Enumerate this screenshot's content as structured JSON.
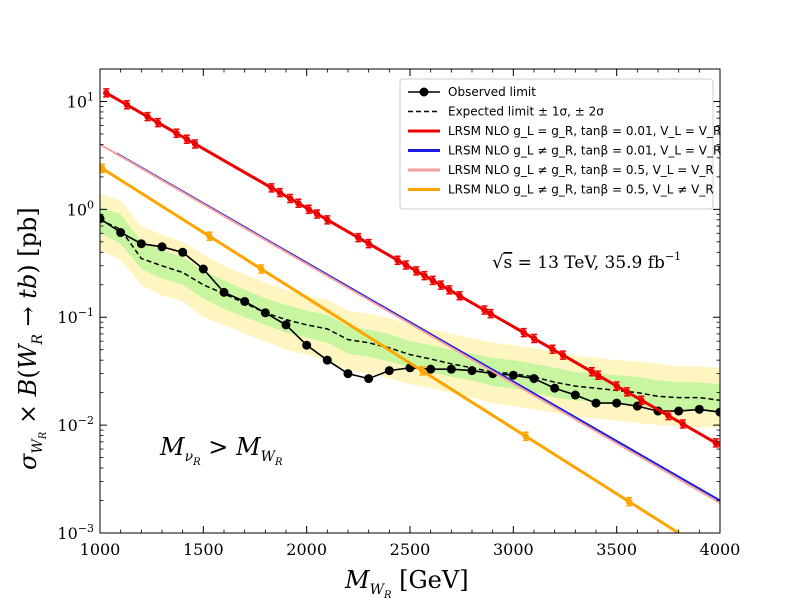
{
  "chart_data": {
    "type": "line",
    "xlabel": "M_{W_R} [GeV]",
    "ylabel": "σ_{W_R} × B(W_R → tb) [pb]",
    "xlim": [
      1000,
      4000
    ],
    "ylim": [
      0.001,
      20
    ],
    "yscale": "log",
    "x_ticks": [
      "1000",
      "1500",
      "2000",
      "2500",
      "3000",
      "3500",
      "4000"
    ],
    "y_ticks": [
      "10^{-3}",
      "10^{-2}",
      "10^{-1}",
      "10^{0}",
      "10^{1}"
    ],
    "legend_position": "top-right",
    "annotations": {
      "energy_lumi": "√s = 13 TeV, 35.9 fb⁻¹",
      "mass_condition": "M_{ν_R} > M_{W_R}"
    },
    "bands": {
      "x": [
        1000,
        1100,
        1200,
        1300,
        1400,
        1500,
        1600,
        1700,
        1800,
        1900,
        2000,
        2100,
        2200,
        2300,
        2400,
        2500,
        2600,
        2700,
        2800,
        2900,
        3000,
        3100,
        3200,
        3300,
        3400,
        3500,
        3600,
        3700,
        3800,
        3900,
        4000
      ],
      "two_sigma_lo": [
        0.42,
        0.34,
        0.2,
        0.16,
        0.14,
        0.1,
        0.085,
        0.07,
        0.06,
        0.05,
        0.045,
        0.04,
        0.032,
        0.03,
        0.027,
        0.024,
        0.022,
        0.02,
        0.018,
        0.016,
        0.015,
        0.014,
        0.013,
        0.012,
        0.0115,
        0.011,
        0.0105,
        0.01,
        0.0098,
        0.0095,
        0.0095
      ],
      "one_sigma_lo": [
        0.6,
        0.48,
        0.28,
        0.23,
        0.2,
        0.15,
        0.12,
        0.1,
        0.085,
        0.072,
        0.065,
        0.058,
        0.046,
        0.043,
        0.039,
        0.034,
        0.031,
        0.028,
        0.026,
        0.023,
        0.022,
        0.02,
        0.018,
        0.017,
        0.0165,
        0.016,
        0.0155,
        0.014,
        0.0135,
        0.0135,
        0.013
      ],
      "one_sigma_hi": [
        1.05,
        0.9,
        0.5,
        0.42,
        0.36,
        0.27,
        0.22,
        0.18,
        0.15,
        0.13,
        0.115,
        0.105,
        0.082,
        0.077,
        0.07,
        0.06,
        0.055,
        0.05,
        0.046,
        0.042,
        0.04,
        0.037,
        0.034,
        0.031,
        0.03,
        0.029,
        0.028,
        0.026,
        0.025,
        0.025,
        0.024
      ],
      "two_sigma_hi": [
        1.4,
        1.2,
        0.7,
        0.58,
        0.5,
        0.38,
        0.3,
        0.25,
        0.21,
        0.18,
        0.16,
        0.145,
        0.115,
        0.108,
        0.098,
        0.085,
        0.077,
        0.07,
        0.064,
        0.058,
        0.055,
        0.052,
        0.048,
        0.044,
        0.042,
        0.04,
        0.039,
        0.037,
        0.035,
        0.035,
        0.034
      ]
    },
    "series": [
      {
        "name": "Observed limit",
        "style": "observed",
        "color": "#000000",
        "x": [
          1000,
          1100,
          1200,
          1300,
          1400,
          1500,
          1600,
          1700,
          1800,
          1900,
          2000,
          2100,
          2200,
          2300,
          2400,
          2500,
          2600,
          2700,
          2800,
          2900,
          3000,
          3100,
          3200,
          3300,
          3400,
          3500,
          3600,
          3700,
          3800,
          3900,
          4000
        ],
        "y": [
          0.82,
          0.61,
          0.48,
          0.45,
          0.4,
          0.28,
          0.17,
          0.14,
          0.11,
          0.085,
          0.055,
          0.04,
          0.03,
          0.027,
          0.032,
          0.034,
          0.033,
          0.033,
          0.032,
          0.03,
          0.029,
          0.027,
          0.022,
          0.019,
          0.016,
          0.016,
          0.015,
          0.0135,
          0.0135,
          0.014,
          0.0132
        ]
      },
      {
        "name": "Expected limit ± 1σ, ± 2σ",
        "style": "expected",
        "color": "#000000",
        "x": [
          1000,
          1100,
          1200,
          1300,
          1400,
          1500,
          1600,
          1700,
          1800,
          1900,
          2000,
          2100,
          2200,
          2300,
          2400,
          2500,
          2600,
          2700,
          2800,
          2900,
          3000,
          3100,
          3200,
          3300,
          3400,
          3500,
          3600,
          3700,
          3800,
          3900,
          4000
        ],
        "y": [
          0.8,
          0.65,
          0.35,
          0.3,
          0.26,
          0.2,
          0.165,
          0.135,
          0.11,
          0.095,
          0.085,
          0.078,
          0.062,
          0.058,
          0.052,
          0.045,
          0.041,
          0.037,
          0.034,
          0.031,
          0.03,
          0.028,
          0.025,
          0.023,
          0.022,
          0.021,
          0.02,
          0.0185,
          0.018,
          0.018,
          0.017
        ]
      },
      {
        "name": "LRSM NLO g_L = g_R, tanβ = 0.01, V_L = V_R",
        "style": "theory",
        "color": "#ee0000",
        "marker_x": [
          1030,
          1130,
          1230,
          1280,
          1370,
          1420,
          1460,
          1830,
          1870,
          1920,
          1960,
          2010,
          2050,
          2100,
          2250,
          2300,
          2440,
          2480,
          2530,
          2570,
          2610,
          2650,
          2690,
          2740,
          2860,
          2890,
          3050,
          3100,
          3190,
          3240,
          3380,
          3410,
          3500,
          3550,
          3620,
          3750,
          3820,
          3980
        ],
        "x": [
          1030,
          4000
        ],
        "y": [
          12.0,
          0.0065
        ]
      },
      {
        "name": "LRSM NLO g_L ≠ g_R, tanβ = 0.01, V_L = V_R",
        "style": "theory",
        "color": "#1a1ae6",
        "x": [
          1080,
          4000
        ],
        "y": [
          3.3,
          0.002
        ]
      },
      {
        "name": "LRSM NLO g_L ≠ g_R, tanβ = 0.5, V_L = V_R",
        "style": "theory",
        "color": "#f5a0a0",
        "x": [
          1000,
          4000
        ],
        "y": [
          4.0,
          0.0019
        ]
      },
      {
        "name": "LRSM NLO g_L ≠ g_R, tanβ = 0.5, V_L ≠ V_R",
        "style": "theory",
        "color": "#ffa500",
        "marker_x": [
          1010,
          1530,
          1780,
          2560,
          3060,
          3560
        ],
        "x": [
          1010,
          3800
        ],
        "y": [
          2.4,
          0.001
        ]
      }
    ]
  }
}
